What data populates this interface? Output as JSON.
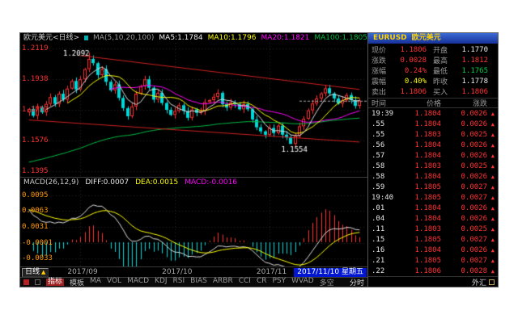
{
  "chart_header": {
    "title": "欧元美元<日线>",
    "ma_group": "MA(5,10,20,100)",
    "ma5": "MA5:1.1784",
    "ma10": "MA10:1.1796",
    "ma20": "MA20:1.1821",
    "ma100": "MA100:1.1805"
  },
  "macd_header": {
    "name": "MACD(26,12,9)",
    "diff": "DIFF:0.0007",
    "dea": "DEA:0.0015",
    "macd": "MACD:-0.0016"
  },
  "axis": {
    "period_button": "日线",
    "period_arrow": "▲",
    "date_box": "2017/11/10 星期五"
  },
  "toolbar": {
    "tab_indicator": "指标",
    "tab_template": "模板",
    "items": [
      "MA",
      "VOL",
      "MACD",
      "KDJ",
      "RSI",
      "BIAS",
      "ARBR",
      "CCI",
      "CR",
      "PSY",
      "WVAD",
      "多空"
    ],
    "right_item": "分时"
  },
  "quote_panel": {
    "symbol": "EURUSD",
    "name": "欧元美元",
    "cells": [
      {
        "label": "现价",
        "value": "1.1806",
        "color": "red"
      },
      {
        "label": "开盘",
        "value": "1.1770",
        "color": "white"
      },
      {
        "label": "涨跌",
        "value": "0.0028",
        "color": "red"
      },
      {
        "label": "最高",
        "value": "1.1812",
        "color": "red"
      },
      {
        "label": "涨幅",
        "value": "0.24%",
        "color": "red"
      },
      {
        "label": "最低",
        "value": "1.1765",
        "color": "green"
      },
      {
        "label": "震幅",
        "value": "0.40%",
        "color": "yellow"
      },
      {
        "label": "昨收",
        "value": "1.1778",
        "color": "white"
      },
      {
        "label": "卖出",
        "value": "1.1806",
        "color": "red"
      },
      {
        "label": "买入",
        "value": "1.1806",
        "color": "red"
      }
    ],
    "sales_columns": [
      "时间",
      "价格",
      "涨跌"
    ],
    "arrow_up": "▲",
    "sales": [
      {
        "time": "19:39",
        "price": "1.1804",
        "change": "0.0026"
      },
      {
        "time": ".55",
        "price": "1.1804",
        "change": "0.0026"
      },
      {
        "time": ".55",
        "price": "1.1803",
        "change": "0.0025"
      },
      {
        "time": ".56",
        "price": "1.1804",
        "change": "0.0026"
      },
      {
        "time": ".57",
        "price": "1.1804",
        "change": "0.0026"
      },
      {
        "time": ".58",
        "price": "1.1803",
        "change": "0.0025"
      },
      {
        "time": ".58",
        "price": "1.1804",
        "change": "0.0026"
      },
      {
        "time": ".59",
        "price": "1.1805",
        "change": "0.0027"
      },
      {
        "time": "19:40",
        "price": "1.1805",
        "change": "0.0027"
      },
      {
        "time": ".01",
        "price": "1.1804",
        "change": "0.0026"
      },
      {
        "time": ".04",
        "price": "1.1804",
        "change": "0.0026"
      },
      {
        "time": ".11",
        "price": "1.1803",
        "change": "0.0025"
      },
      {
        "time": ".15",
        "price": "1.1805",
        "change": "0.0027"
      },
      {
        "time": ".16",
        "price": "1.1804",
        "change": "0.0026"
      },
      {
        "time": ".21",
        "price": "1.1805",
        "change": "0.0027"
      },
      {
        "time": ".22",
        "price": "1.1806",
        "change": "0.0028"
      }
    ],
    "bottom_tab": "外汇"
  },
  "chart_data": {
    "type": "candlestick",
    "title": "欧元美元<日线>",
    "y_axis_labels": [
      "1.2119",
      "1.1938",
      "1.1757",
      "1.1576",
      "1.1395"
    ],
    "y_range": [
      1.136,
      1.215
    ],
    "closes": [
      1.176,
      1.172,
      1.177,
      1.174,
      1.179,
      1.183,
      1.179,
      1.185,
      1.1815,
      1.188,
      1.1925,
      1.1875,
      1.1935,
      1.1995,
      1.2055,
      1.203,
      1.196,
      1.1995,
      1.192,
      1.187,
      1.1905,
      1.1825,
      1.1765,
      1.1717,
      1.1775,
      1.185,
      1.1895,
      1.1935,
      1.1885,
      1.1815,
      1.1855,
      1.1795,
      1.1755,
      1.1725,
      1.1748,
      1.1782,
      1.1748,
      1.1708,
      1.1757,
      1.1737,
      1.1747,
      1.18,
      1.1812,
      1.1832,
      1.1855,
      1.1788,
      1.1768,
      1.1798,
      1.1788,
      1.1758,
      1.1788,
      1.1758,
      1.1698,
      1.1652,
      1.1628,
      1.1608,
      1.1648,
      1.1618,
      1.1662,
      1.1608,
      1.1592,
      1.1554,
      1.1602,
      1.1658,
      1.1702,
      1.1752,
      1.1792,
      1.1822,
      1.1852,
      1.1882,
      1.1852,
      1.1822,
      1.1792,
      1.1812,
      1.1842,
      1.1812,
      1.1778,
      1.1806
    ],
    "peak": {
      "index": 14,
      "price": 1.2092,
      "label": "1.2092"
    },
    "trough": {
      "index": 61,
      "price": 1.1554,
      "label": "1.1554"
    },
    "month_ticks": [
      {
        "index": 12,
        "label": "2017/09"
      },
      {
        "index": 34,
        "label": "2017/10"
      },
      {
        "index": 56,
        "label": "2017/11"
      }
    ],
    "trendlines": [
      {
        "x1": 12,
        "p1": 1.2075,
        "x2": 77,
        "p2": 1.1875
      },
      {
        "x1": 0,
        "p1": 1.1695,
        "x2": 77,
        "p2": 1.1565
      }
    ],
    "last_price": 1.1806,
    "ma_periods": [
      5,
      10,
      20,
      100
    ],
    "macd": {
      "y_axis_labels": [
        "0.0095",
        "0.0063",
        "0.0031",
        "-0.0001",
        "-0.0033"
      ],
      "y_range": [
        -0.0049,
        0.0111
      ],
      "diff": 0.0007,
      "dea": 0.0015,
      "macd": -0.0016
    }
  }
}
